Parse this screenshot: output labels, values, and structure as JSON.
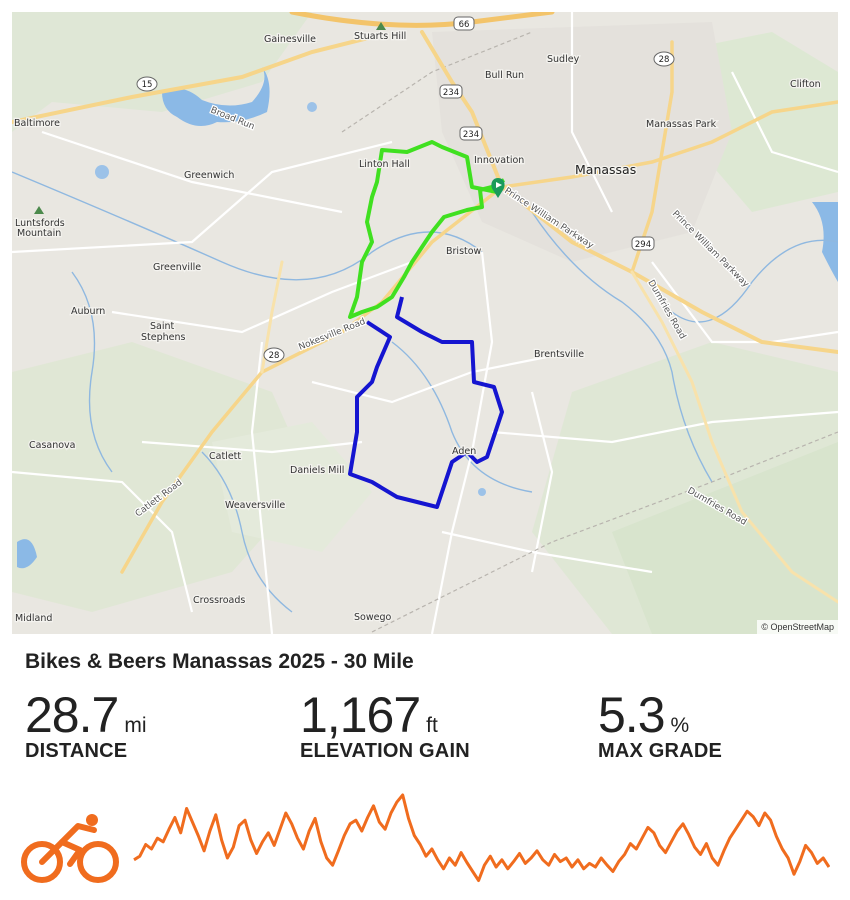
{
  "route": {
    "title": "Bikes & Beers Manassas 2025 - 30 Mile",
    "colors": {
      "outbound": "#40e020",
      "loop": "#1515d0",
      "profile": "#f06c1e",
      "start_marker": "#1a9a5a"
    }
  },
  "stats": {
    "distance": {
      "value": "28.7",
      "unit": "mi",
      "label": "DISTANCE"
    },
    "elevation": {
      "value": "1,167",
      "unit": "ft",
      "label": "ELEVATION GAIN"
    },
    "grade": {
      "value": "5.3",
      "unit": "%",
      "label": "MAX GRADE"
    }
  },
  "map": {
    "attribution": "© OpenStreetMap",
    "places": {
      "gainesville": "Gainesville",
      "stuarts_hill": "Stuarts Hill",
      "sudley": "Sudley",
      "bull_run": "Bull Run",
      "clifton": "Clifton",
      "baltimore": "Baltimore",
      "broad_run": "Broad Run",
      "manassas_park": "Manassas Park",
      "linton_hall": "Linton Hall",
      "innovation": "Innovation",
      "manassas": "Manassas",
      "greenwich": "Greenwich",
      "luntsfords": "Luntsfords",
      "mountain": "Mountain",
      "bristow": "Bristow",
      "greenville": "Greenville",
      "auburn": "Auburn",
      "saint": "Saint",
      "stephens": "Stephens",
      "brentsville": "Brentsville",
      "casanova": "Casanova",
      "catlett": "Catlett",
      "daniels_mill": "Daniels Mill",
      "aden": "Aden",
      "weaversville": "Weaversville",
      "crossroads": "Crossroads",
      "midland": "Midland",
      "sowego": "Sowego"
    },
    "roads": {
      "pwp": "Prince William Parkway",
      "pwp2": "Prince William Parkway",
      "nokesville": "Nokesville Road",
      "dumfries": "Dumfries Road",
      "dumfries2": "Dumfries Road",
      "catlett": "Catlett Road"
    },
    "shields": {
      "r66": "66",
      "r28a": "28",
      "r15": "15",
      "r234a": "234",
      "r234b": "234",
      "r294": "294",
      "r28b": "28"
    }
  },
  "elevation_profile": [
    0.28,
    0.32,
    0.45,
    0.4,
    0.52,
    0.48,
    0.62,
    0.75,
    0.58,
    0.85,
    0.7,
    0.55,
    0.38,
    0.6,
    0.78,
    0.5,
    0.3,
    0.42,
    0.66,
    0.72,
    0.5,
    0.35,
    0.48,
    0.58,
    0.44,
    0.62,
    0.8,
    0.68,
    0.52,
    0.4,
    0.6,
    0.74,
    0.48,
    0.3,
    0.22,
    0.38,
    0.55,
    0.68,
    0.72,
    0.6,
    0.75,
    0.88,
    0.7,
    0.62,
    0.8,
    0.92,
    1.0,
    0.74,
    0.55,
    0.45,
    0.32,
    0.4,
    0.28,
    0.18,
    0.3,
    0.22,
    0.36,
    0.25,
    0.15,
    0.05,
    0.22,
    0.32,
    0.2,
    0.28,
    0.18,
    0.26,
    0.35,
    0.24,
    0.3,
    0.38,
    0.28,
    0.22,
    0.34,
    0.26,
    0.3,
    0.2,
    0.28,
    0.18,
    0.24,
    0.2,
    0.3,
    0.22,
    0.15,
    0.26,
    0.34,
    0.46,
    0.4,
    0.52,
    0.64,
    0.58,
    0.44,
    0.36,
    0.48,
    0.6,
    0.68,
    0.56,
    0.42,
    0.34,
    0.46,
    0.3,
    0.22,
    0.38,
    0.52,
    0.62,
    0.72,
    0.82,
    0.76,
    0.66,
    0.8,
    0.72,
    0.54,
    0.4,
    0.3,
    0.12,
    0.26,
    0.44,
    0.36,
    0.24,
    0.3,
    0.2
  ]
}
